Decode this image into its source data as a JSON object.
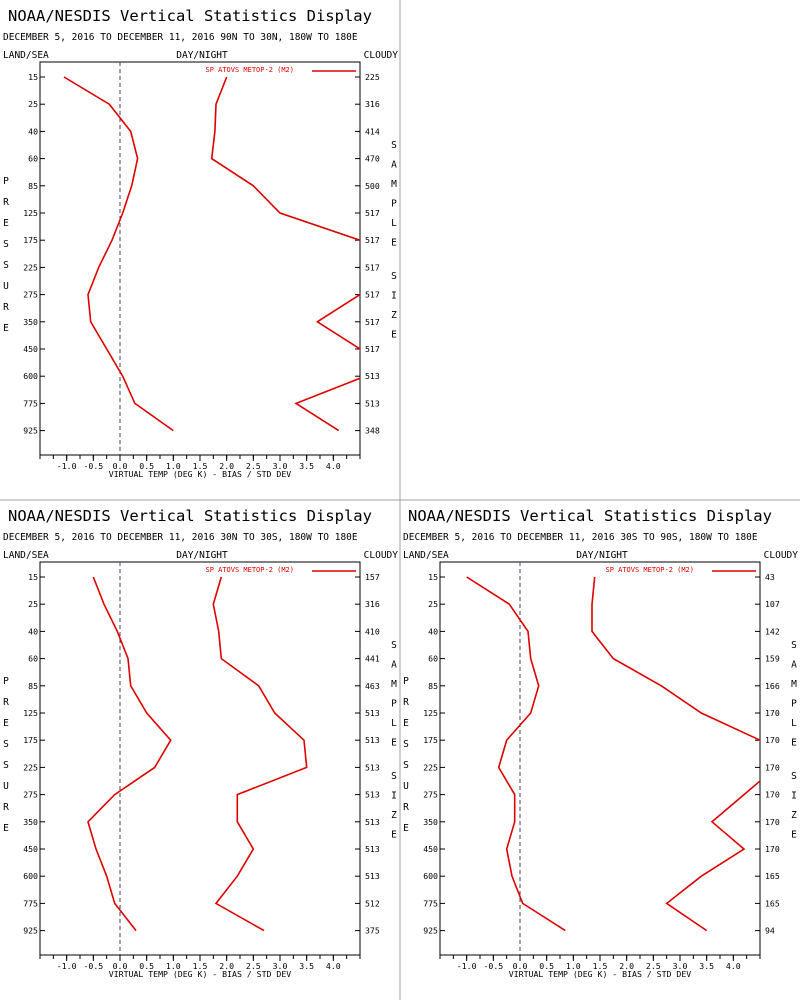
{
  "divider_color": "#a0a0a0",
  "line_color": "#dd0000",
  "chart_data": [
    {
      "type": "line",
      "title": "NOAA/NESDIS Vertical Statistics Display",
      "subtitle": "DECEMBER 5, 2016 TO DECEMBER 11, 2016 90N TO 30N, 180W TO 180E",
      "top_labels": {
        "left": "LAND/SEA",
        "center": "DAY/NIGHT",
        "right": "CLOUDY"
      },
      "ylabel": "PRESSURE",
      "y2label": "SAMPLE SIZE",
      "xlabel": "VIRTUAL TEMP (DEG K) - BIAS / STD DEV",
      "legend": "SP ATOVS METOP-2 (M2)",
      "legend_position": "top-right",
      "xlim": [
        -1.5,
        4.5
      ],
      "x_ticks": [
        "-1.0",
        "-0.5",
        "0.0",
        "0.5",
        "1.0",
        "1.5",
        "2.0",
        "2.5",
        "3.0",
        "3.5",
        "4.0"
      ],
      "pressure_levels": [
        "15",
        "25",
        "40",
        "60",
        "85",
        "125",
        "175",
        "225",
        "275",
        "350",
        "450",
        "600",
        "775",
        "925"
      ],
      "sample_sizes": [
        "225",
        "316",
        "414",
        "470",
        "500",
        "517",
        "517",
        "517",
        "517",
        "517",
        "517",
        "513",
        "513",
        "348"
      ],
      "series": [
        {
          "values": [
            -1.05,
            -0.2,
            0.2,
            0.33,
            0.22,
            0.05,
            -0.15,
            -0.4,
            -0.6,
            -0.55,
            -0.25,
            0.05,
            0.28,
            1.0
          ]
        },
        {
          "values": [
            2.0,
            1.8,
            1.78,
            1.72,
            2.5,
            3.0,
            4.5,
            5.0,
            4.5,
            3.7,
            4.5,
            4.6,
            3.3,
            4.1
          ]
        }
      ]
    },
    {
      "type": "line",
      "title": "NOAA/NESDIS Vertical Statistics Display",
      "subtitle": "DECEMBER 5, 2016 TO DECEMBER 11, 2016 30N TO 30S, 180W TO 180E",
      "top_labels": {
        "left": "LAND/SEA",
        "center": "DAY/NIGHT",
        "right": "CLOUDY"
      },
      "ylabel": "PRESSURE",
      "y2label": "SAMPLE SIZE",
      "xlabel": "VIRTUAL TEMP (DEG K) - BIAS / STD DEV",
      "legend": "SP ATOVS METOP-2 (M2)",
      "legend_position": "top-right",
      "xlim": [
        -1.5,
        4.5
      ],
      "x_ticks": [
        "-1.0",
        "-0.5",
        "0.0",
        "0.5",
        "1.0",
        "1.5",
        "2.0",
        "2.5",
        "3.0",
        "3.5",
        "4.0"
      ],
      "pressure_levels": [
        "15",
        "25",
        "40",
        "60",
        "85",
        "125",
        "175",
        "225",
        "275",
        "350",
        "450",
        "600",
        "775",
        "925"
      ],
      "sample_sizes": [
        "157",
        "316",
        "410",
        "441",
        "463",
        "513",
        "513",
        "513",
        "513",
        "513",
        "513",
        "513",
        "512",
        "375"
      ],
      "series": [
        {
          "values": [
            -0.5,
            -0.3,
            -0.05,
            0.15,
            0.2,
            0.5,
            0.95,
            0.65,
            -0.1,
            -0.6,
            -0.45,
            -0.25,
            -0.1,
            0.3
          ]
        },
        {
          "values": [
            1.9,
            1.75,
            1.85,
            1.9,
            2.6,
            2.9,
            3.45,
            3.5,
            2.2,
            2.2,
            2.5,
            2.2,
            1.8,
            2.7
          ]
        }
      ]
    },
    {
      "type": "line",
      "title": "NOAA/NESDIS Vertical Statistics Display",
      "subtitle": "DECEMBER 5, 2016 TO DECEMBER 11, 2016 30S TO 90S, 180W TO 180E",
      "top_labels": {
        "left": "LAND/SEA",
        "center": "DAY/NIGHT",
        "right": "CLOUDY"
      },
      "ylabel": "PRESSURE",
      "y2label": "SAMPLE SIZE",
      "xlabel": "VIRTUAL TEMP (DEG K) - BIAS / STD DEV",
      "legend": "SP ATOVS METOP-2 (M2)",
      "legend_position": "top-right",
      "xlim": [
        -1.5,
        4.5
      ],
      "x_ticks": [
        "-1.0",
        "-0.5",
        "0.0",
        "0.5",
        "1.0",
        "1.5",
        "2.0",
        "2.5",
        "3.0",
        "3.5",
        "4.0"
      ],
      "pressure_levels": [
        "15",
        "25",
        "40",
        "60",
        "85",
        "125",
        "175",
        "225",
        "275",
        "350",
        "450",
        "600",
        "775",
        "925"
      ],
      "sample_sizes": [
        "43",
        "107",
        "142",
        "159",
        "166",
        "170",
        "170",
        "170",
        "170",
        "170",
        "170",
        "165",
        "165",
        "94"
      ],
      "series": [
        {
          "values": [
            -1.0,
            -0.2,
            0.15,
            0.2,
            0.35,
            0.2,
            -0.25,
            -0.4,
            -0.1,
            -0.1,
            -0.25,
            -0.15,
            0.05,
            0.85
          ]
        },
        {
          "values": [
            1.4,
            1.35,
            1.35,
            1.75,
            2.65,
            3.4,
            4.5,
            4.8,
            4.2,
            3.6,
            4.2,
            3.4,
            2.75,
            3.5
          ]
        }
      ]
    }
  ]
}
